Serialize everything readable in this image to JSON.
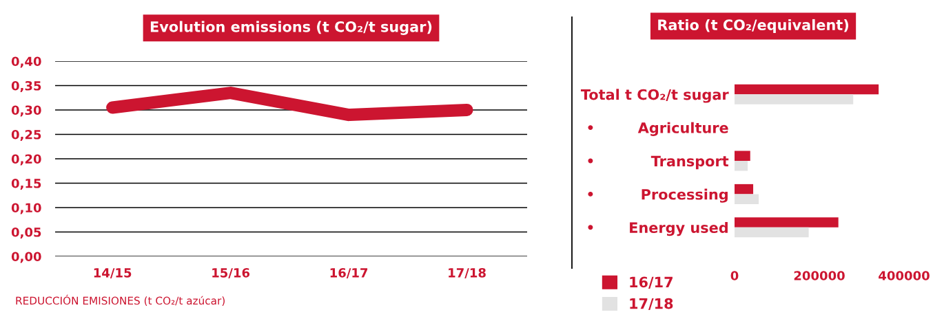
{
  "chart_data": [
    {
      "type": "line",
      "title": "Evolution emissions (t CO₂/t sugar)",
      "categories": [
        "14/15",
        "15/16",
        "16/17",
        "17/18"
      ],
      "series": [
        {
          "color": "#cc1530",
          "values": [
            0.305,
            0.335,
            0.29,
            0.3
          ]
        }
      ],
      "ylim": [
        0,
        0.4
      ],
      "yticks": [
        {
          "value": 0,
          "label": "0,00"
        },
        {
          "value": 0.05,
          "label": "0,05"
        },
        {
          "value": 0.1,
          "label": "0,10"
        },
        {
          "value": 0.15,
          "label": "0,15"
        },
        {
          "value": 0.2,
          "label": "0,20"
        },
        {
          "value": 0.25,
          "label": "0,25"
        },
        {
          "value": 0.3,
          "label": "0,30"
        },
        {
          "value": 0.35,
          "label": "0,35"
        },
        {
          "value": 0.4,
          "label": "0,40"
        }
      ],
      "grid": "y",
      "line_style": "solid",
      "annotations": [
        "REDUCCIÓN EMISIONES (t CO₂/t azúcar)"
      ]
    },
    {
      "type": "bar",
      "orientation": "horizontal",
      "title": "Ratio (t CO₂/equivalent)",
      "categories": [
        "Total t CO₂/t sugar",
        "Agriculture",
        "Transport",
        "Processing",
        "Energy used"
      ],
      "series": [
        {
          "name": "16/17",
          "color": "#cc1530",
          "values": [
            340000,
            null,
            37000,
            44000,
            245000
          ]
        },
        {
          "name": "17/18",
          "color": "#e2e2e2",
          "values": [
            280000,
            null,
            31000,
            57000,
            175000
          ]
        }
      ],
      "xlim": [
        0,
        400000
      ],
      "xticks": [
        0,
        200000,
        400000
      ],
      "legend": "bottom left"
    }
  ]
}
